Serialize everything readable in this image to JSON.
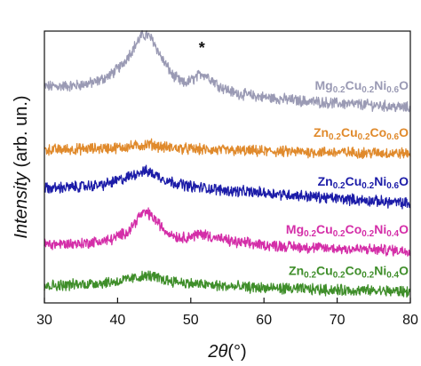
{
  "chart_data": {
    "type": "line",
    "xlabel": "2θ(°)",
    "ylabel": "Intensity (arb. un.)",
    "xlim": [
      30,
      80
    ],
    "x_ticks": [
      30,
      40,
      50,
      60,
      70,
      80
    ],
    "y_ticks": [],
    "grid": false,
    "legend": "none",
    "annotations": [
      {
        "text": "*",
        "x": 51.5
      }
    ],
    "series": [
      {
        "name": "Mg0.2Cu0.2Ni0.6O",
        "label_parts": [
          [
            "Mg",
            "0.2"
          ],
          [
            "Cu",
            "0.2"
          ],
          [
            "Ni",
            "0.6"
          ],
          [
            "O",
            ""
          ]
        ],
        "color": "#9a9ab4",
        "baseline": 5.45,
        "points": [
          [
            30,
            0.6
          ],
          [
            34,
            0.62
          ],
          [
            37,
            0.72
          ],
          [
            39,
            0.92
          ],
          [
            40.5,
            1.18
          ],
          [
            42,
            1.62
          ],
          [
            43.2,
            2.0
          ],
          [
            44,
            2.05
          ],
          [
            44.8,
            1.9
          ],
          [
            46,
            1.4
          ],
          [
            47.5,
            0.92
          ],
          [
            49,
            0.68
          ],
          [
            50.5,
            0.82
          ],
          [
            51.5,
            0.98
          ],
          [
            52.5,
            0.86
          ],
          [
            54,
            0.6
          ],
          [
            56,
            0.42
          ],
          [
            60,
            0.3
          ],
          [
            65,
            0.2
          ],
          [
            70,
            0.13
          ],
          [
            75,
            0.08
          ],
          [
            80,
            0.0
          ]
        ]
      },
      {
        "name": "Zn0.2Cu0.2Co0.6O",
        "label_parts": [
          [
            "Zn",
            "0.2"
          ],
          [
            "Cu",
            "0.2"
          ],
          [
            "Co",
            "0.6"
          ],
          [
            "O",
            ""
          ]
        ],
        "color": "#e08a2c",
        "baseline": 4.18,
        "points": [
          [
            30,
            0.1
          ],
          [
            35,
            0.12
          ],
          [
            40,
            0.16
          ],
          [
            43,
            0.22
          ],
          [
            44.5,
            0.26
          ],
          [
            46,
            0.18
          ],
          [
            50,
            0.12
          ],
          [
            55,
            0.08
          ],
          [
            60,
            0.06
          ],
          [
            70,
            0.03
          ],
          [
            80,
            0.0
          ]
        ]
      },
      {
        "name": "Zn0.2Cu0.2Ni0.6O",
        "label_parts": [
          [
            "Zn",
            "0.2"
          ],
          [
            "Cu",
            "0.2"
          ],
          [
            "Ni",
            "0.6"
          ],
          [
            "O",
            ""
          ]
        ],
        "color": "#1c1ca8",
        "baseline": 2.78,
        "points": [
          [
            30,
            0.42
          ],
          [
            34,
            0.46
          ],
          [
            38,
            0.52
          ],
          [
            41,
            0.7
          ],
          [
            43,
            0.88
          ],
          [
            44,
            0.9
          ],
          [
            45,
            0.82
          ],
          [
            47,
            0.62
          ],
          [
            50,
            0.48
          ],
          [
            55,
            0.36
          ],
          [
            60,
            0.3
          ],
          [
            65,
            0.22
          ],
          [
            70,
            0.14
          ],
          [
            75,
            0.07
          ],
          [
            80,
            0.0
          ]
        ]
      },
      {
        "name": "Mg0.2Cu0.2Co0.2Ni0.4O",
        "label_parts": [
          [
            "Mg",
            "0.2"
          ],
          [
            "Cu",
            "0.2"
          ],
          [
            "Co",
            "0.2"
          ],
          [
            "Ni",
            "0.4"
          ],
          [
            "O",
            ""
          ]
        ],
        "color": "#d42ea8",
        "baseline": 1.46,
        "points": [
          [
            30,
            0.18
          ],
          [
            35,
            0.2
          ],
          [
            39,
            0.3
          ],
          [
            41.5,
            0.55
          ],
          [
            43,
            0.98
          ],
          [
            44,
            1.08
          ],
          [
            45,
            0.9
          ],
          [
            46.5,
            0.55
          ],
          [
            48.5,
            0.36
          ],
          [
            50.5,
            0.42
          ],
          [
            51.5,
            0.48
          ],
          [
            53,
            0.38
          ],
          [
            56,
            0.24
          ],
          [
            60,
            0.16
          ],
          [
            65,
            0.1
          ],
          [
            70,
            0.06
          ],
          [
            80,
            0.0
          ]
        ]
      },
      {
        "name": "Zn0.2Cu0.2Co0.2Ni0.4O",
        "label_parts": [
          [
            "Zn",
            "0.2"
          ],
          [
            "Cu",
            "0.2"
          ],
          [
            "Co",
            "0.2"
          ],
          [
            "Ni",
            "0.4"
          ],
          [
            "O",
            ""
          ]
        ],
        "color": "#3f8e2a",
        "baseline": 0.32,
        "points": [
          [
            30,
            0.16
          ],
          [
            35,
            0.2
          ],
          [
            40,
            0.28
          ],
          [
            43,
            0.4
          ],
          [
            44.5,
            0.44
          ],
          [
            46,
            0.34
          ],
          [
            50,
            0.22
          ],
          [
            55,
            0.14
          ],
          [
            60,
            0.1
          ],
          [
            70,
            0.04
          ],
          [
            80,
            0.0
          ]
        ]
      }
    ]
  }
}
